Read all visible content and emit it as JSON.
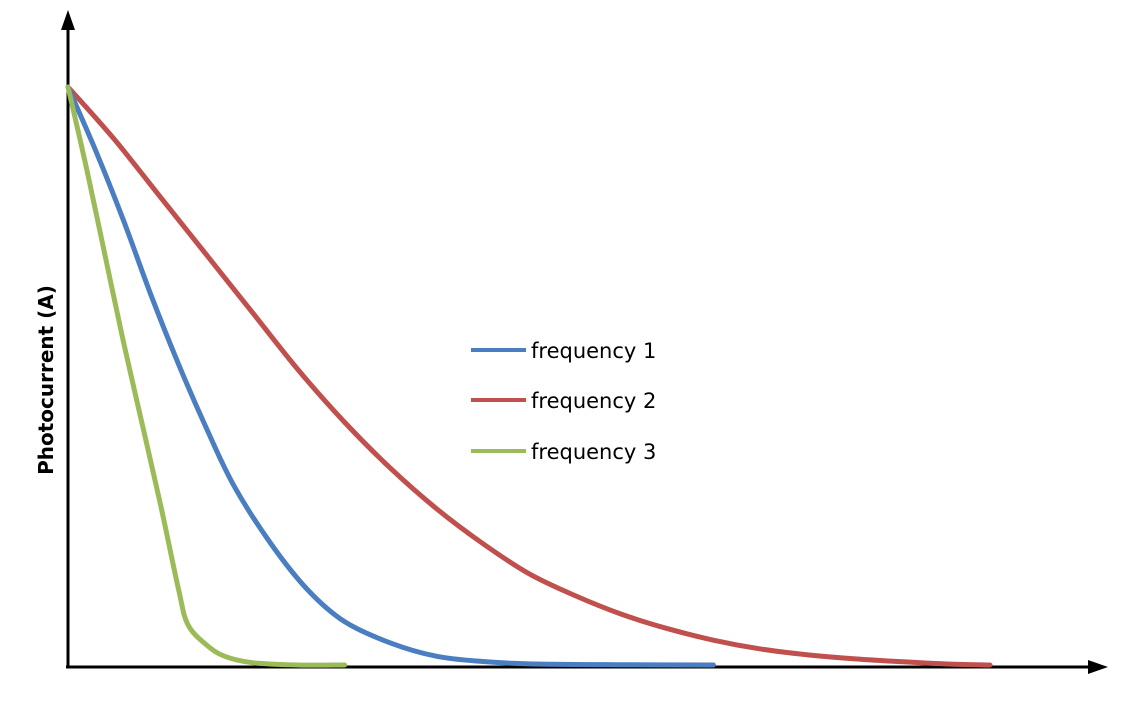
{
  "chart_data": {
    "type": "line",
    "title": "",
    "xlabel": "",
    "ylabel": "Photocurrent (A)",
    "xlim": [
      0,
      10
    ],
    "ylim": [
      0,
      1
    ],
    "grid": false,
    "legend_position": "center",
    "series": [
      {
        "name": "frequency 1",
        "color": "#4a7ec1",
        "x": [
          0,
          0.3,
          0.6,
          0.9,
          1.2,
          1.5,
          1.8,
          2.2,
          2.6,
          3.0,
          3.5,
          4.0,
          4.5,
          5.0,
          6.0,
          7.0
        ],
        "y": [
          1.0,
          0.89,
          0.77,
          0.64,
          0.52,
          0.41,
          0.31,
          0.21,
          0.13,
          0.075,
          0.038,
          0.015,
          0.006,
          0.002,
          0.0005,
          0.0
        ]
      },
      {
        "name": "frequency 2",
        "color": "#c0504d",
        "x": [
          0,
          0.5,
          1.0,
          1.5,
          2.0,
          2.5,
          3.0,
          3.5,
          4.0,
          4.5,
          5.0,
          5.5,
          6.0,
          6.5,
          7.0,
          7.5,
          8.0,
          8.5,
          9.0,
          9.5,
          10.0
        ],
        "y": [
          1.0,
          0.91,
          0.81,
          0.71,
          0.61,
          0.51,
          0.42,
          0.34,
          0.27,
          0.21,
          0.158,
          0.12,
          0.088,
          0.063,
          0.043,
          0.028,
          0.018,
          0.011,
          0.006,
          0.002,
          0.0
        ]
      },
      {
        "name": "frequency 3",
        "color": "#9bbb59",
        "x": [
          0,
          0.2,
          0.4,
          0.6,
          0.8,
          1.0,
          1.2,
          1.3,
          1.5,
          1.7,
          2.0,
          2.5,
          3.0
        ],
        "y": [
          1.0,
          0.86,
          0.71,
          0.56,
          0.42,
          0.28,
          0.13,
          0.07,
          0.035,
          0.015,
          0.004,
          0.0,
          0.0
        ]
      }
    ]
  }
}
